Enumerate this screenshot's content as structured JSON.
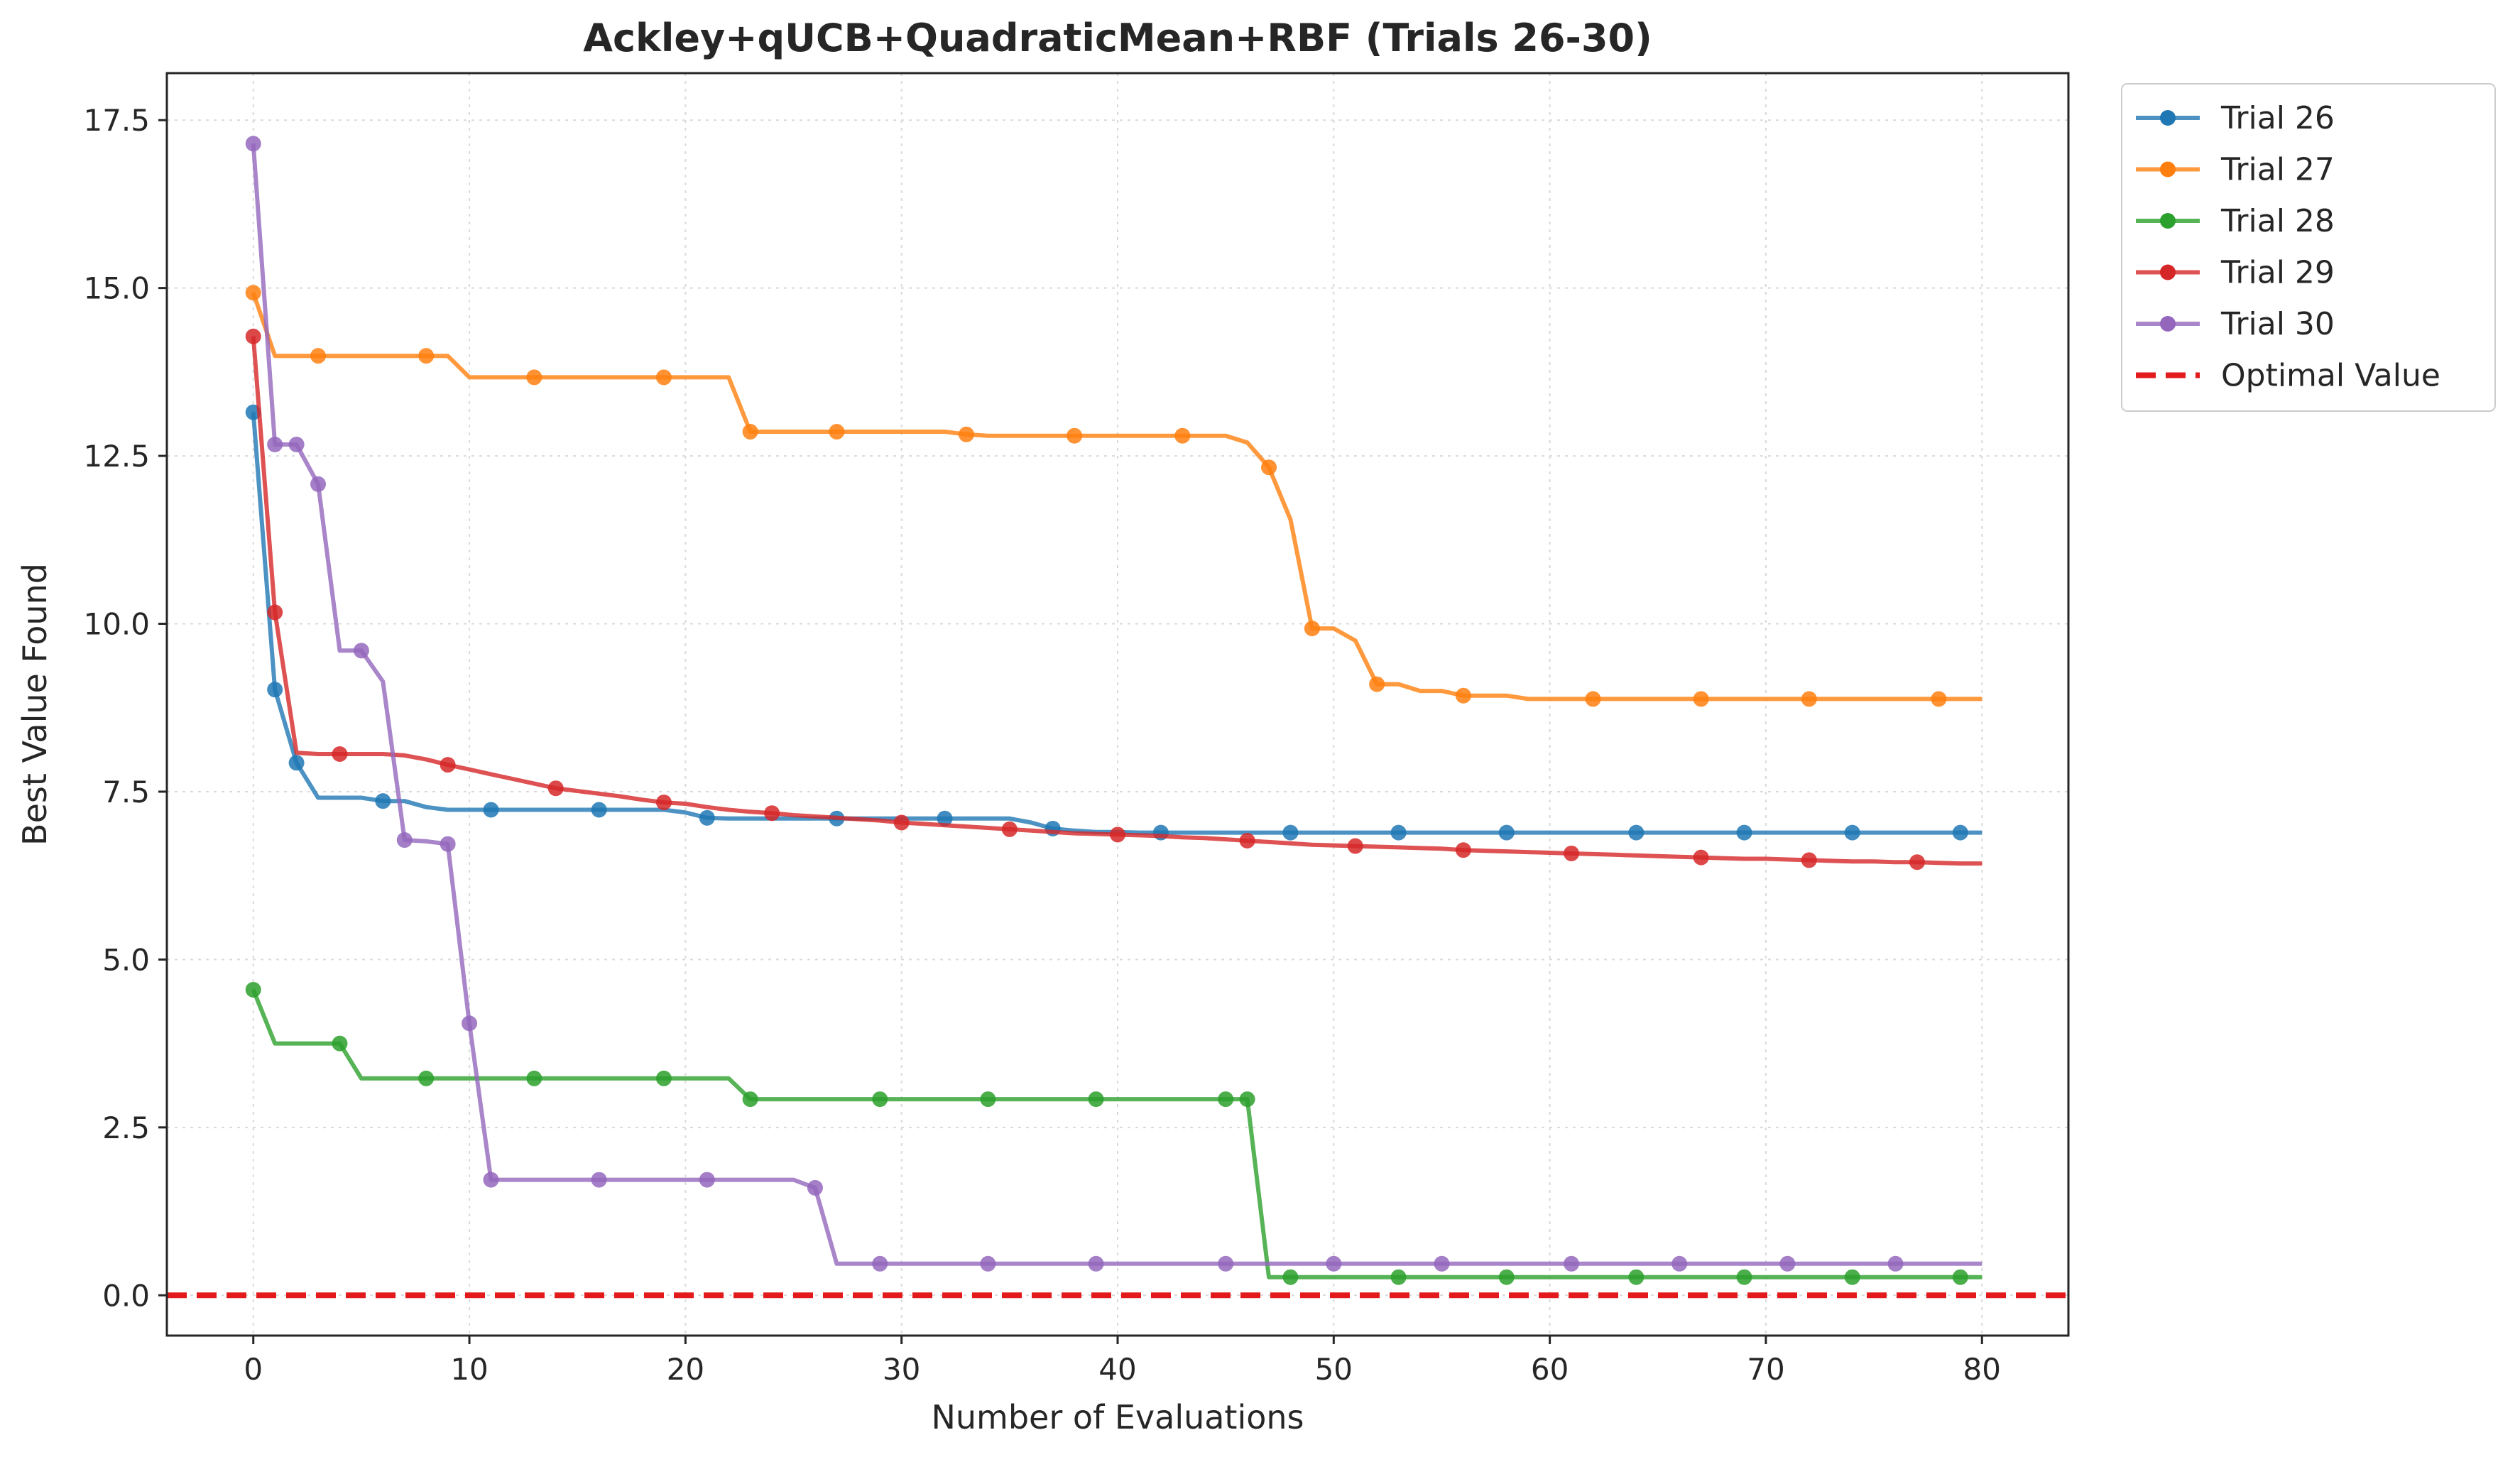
{
  "chart_data": {
    "type": "line",
    "title": "Ackley+qUCB+QuadraticMean+RBF (Trials 26-30)",
    "xlabel": "Number of Evaluations",
    "ylabel": "Best Value Found",
    "xlim": [
      -4,
      84
    ],
    "ylim": [
      -0.6,
      18.2
    ],
    "xticks": [
      0,
      10,
      20,
      30,
      40,
      50,
      60,
      70,
      80
    ],
    "yticks": [
      0.0,
      2.5,
      5.0,
      7.5,
      10.0,
      12.5,
      15.0,
      17.5
    ],
    "ytick_labels": [
      "0.0",
      "2.5",
      "5.0",
      "7.5",
      "10.0",
      "12.5",
      "15.0",
      "17.5"
    ],
    "grid": true,
    "legend_position": "outside-top-right",
    "series": [
      {
        "name": "Trial 26",
        "color": "#1f77b4",
        "x": [
          0,
          1,
          2,
          3,
          4,
          5,
          6,
          7,
          8,
          9,
          10,
          11,
          12,
          13,
          14,
          15,
          16,
          17,
          18,
          19,
          20,
          21,
          22,
          23,
          24,
          25,
          26,
          27,
          28,
          29,
          30,
          31,
          32,
          33,
          34,
          35,
          36,
          37,
          38,
          39,
          40,
          41,
          42,
          43,
          44,
          45,
          46,
          47,
          48,
          49,
          50,
          51,
          52,
          53,
          54,
          55,
          56,
          57,
          58,
          59,
          60,
          61,
          62,
          63,
          64,
          65,
          66,
          67,
          68,
          69,
          70,
          71,
          72,
          73,
          74,
          75,
          76,
          77,
          78,
          79,
          80
        ],
        "y": [
          13.15,
          9.02,
          7.93,
          7.41,
          7.41,
          7.41,
          7.36,
          7.36,
          7.27,
          7.23,
          7.23,
          7.23,
          7.23,
          7.23,
          7.23,
          7.23,
          7.23,
          7.23,
          7.23,
          7.23,
          7.19,
          7.11,
          7.1,
          7.1,
          7.1,
          7.1,
          7.1,
          7.1,
          7.1,
          7.1,
          7.1,
          7.1,
          7.1,
          7.1,
          7.1,
          7.1,
          7.04,
          6.95,
          6.92,
          6.9,
          6.9,
          6.89,
          6.89,
          6.89,
          6.89,
          6.89,
          6.89,
          6.89,
          6.89,
          6.89,
          6.89,
          6.89,
          6.89,
          6.89,
          6.89,
          6.89,
          6.89,
          6.89,
          6.89,
          6.89,
          6.89,
          6.89,
          6.89,
          6.89,
          6.89,
          6.89,
          6.89,
          6.89,
          6.89,
          6.89,
          6.89,
          6.89,
          6.89,
          6.89,
          6.89,
          6.89,
          6.89,
          6.89,
          6.89,
          6.89,
          6.89
        ],
        "markers_x": [
          0,
          1,
          2,
          6,
          11,
          16,
          21,
          27,
          32,
          37,
          42,
          48,
          53,
          58,
          64,
          69,
          74,
          79
        ]
      },
      {
        "name": "Trial 27",
        "color": "#ff7f0e",
        "x": [
          0,
          1,
          2,
          3,
          4,
          5,
          6,
          7,
          8,
          9,
          10,
          11,
          12,
          13,
          14,
          15,
          16,
          17,
          18,
          19,
          20,
          21,
          22,
          23,
          24,
          25,
          26,
          27,
          28,
          29,
          30,
          31,
          32,
          33,
          34,
          35,
          36,
          37,
          38,
          39,
          40,
          41,
          42,
          43,
          44,
          45,
          46,
          47,
          48,
          49,
          50,
          51,
          52,
          53,
          54,
          55,
          56,
          57,
          58,
          59,
          60,
          61,
          62,
          63,
          64,
          65,
          66,
          67,
          68,
          69,
          70,
          71,
          72,
          73,
          74,
          75,
          76,
          77,
          78,
          79,
          80
        ],
        "y": [
          14.93,
          13.99,
          13.99,
          13.99,
          13.99,
          13.99,
          13.99,
          13.99,
          13.99,
          13.99,
          13.67,
          13.67,
          13.67,
          13.67,
          13.67,
          13.67,
          13.67,
          13.67,
          13.67,
          13.67,
          13.67,
          13.67,
          13.67,
          12.86,
          12.86,
          12.86,
          12.86,
          12.86,
          12.86,
          12.86,
          12.86,
          12.86,
          12.86,
          12.82,
          12.8,
          12.8,
          12.8,
          12.8,
          12.8,
          12.8,
          12.8,
          12.8,
          12.8,
          12.8,
          12.8,
          12.8,
          12.7,
          12.33,
          11.55,
          9.93,
          9.93,
          9.75,
          9.1,
          9.1,
          9.0,
          9.0,
          8.93,
          8.93,
          8.93,
          8.88,
          8.88,
          8.88,
          8.88,
          8.88,
          8.88,
          8.88,
          8.88,
          8.88,
          8.88,
          8.88,
          8.88,
          8.88,
          8.88,
          8.88,
          8.88,
          8.88,
          8.88,
          8.88,
          8.88,
          8.88,
          8.88
        ],
        "markers_x": [
          0,
          3,
          8,
          13,
          19,
          23,
          27,
          33,
          38,
          43,
          47,
          49,
          52,
          56,
          62,
          67,
          72,
          78
        ]
      },
      {
        "name": "Trial 28",
        "color": "#2ca02c",
        "x": [
          0,
          1,
          2,
          3,
          4,
          5,
          6,
          7,
          8,
          9,
          10,
          11,
          12,
          13,
          14,
          15,
          16,
          17,
          18,
          19,
          20,
          21,
          22,
          23,
          24,
          25,
          26,
          27,
          28,
          29,
          30,
          31,
          32,
          33,
          34,
          35,
          36,
          37,
          38,
          39,
          40,
          41,
          42,
          43,
          44,
          45,
          46,
          47,
          48,
          49,
          50,
          51,
          52,
          53,
          54,
          55,
          56,
          57,
          58,
          59,
          60,
          61,
          62,
          63,
          64,
          65,
          66,
          67,
          68,
          69,
          70,
          71,
          72,
          73,
          74,
          75,
          76,
          77,
          78,
          79,
          80
        ],
        "y": [
          4.55,
          3.75,
          3.75,
          3.75,
          3.75,
          3.23,
          3.23,
          3.23,
          3.23,
          3.23,
          3.23,
          3.23,
          3.23,
          3.23,
          3.23,
          3.23,
          3.23,
          3.23,
          3.23,
          3.23,
          3.23,
          3.23,
          3.23,
          2.92,
          2.92,
          2.92,
          2.92,
          2.92,
          2.92,
          2.92,
          2.92,
          2.92,
          2.92,
          2.92,
          2.92,
          2.92,
          2.92,
          2.92,
          2.92,
          2.92,
          2.92,
          2.92,
          2.92,
          2.92,
          2.92,
          2.92,
          2.92,
          0.27,
          0.27,
          0.27,
          0.27,
          0.27,
          0.27,
          0.27,
          0.27,
          0.27,
          0.27,
          0.27,
          0.27,
          0.27,
          0.27,
          0.27,
          0.27,
          0.27,
          0.27,
          0.27,
          0.27,
          0.27,
          0.27,
          0.27,
          0.27,
          0.27,
          0.27,
          0.27,
          0.27,
          0.27,
          0.27,
          0.27,
          0.27,
          0.27,
          0.27
        ],
        "markers_x": [
          0,
          4,
          8,
          13,
          19,
          23,
          29,
          34,
          39,
          45,
          46,
          48,
          53,
          58,
          64,
          69,
          74,
          79
        ]
      },
      {
        "name": "Trial 29",
        "color": "#d62728",
        "x": [
          0,
          1,
          2,
          3,
          4,
          5,
          6,
          7,
          8,
          9,
          10,
          11,
          12,
          13,
          14,
          15,
          16,
          17,
          18,
          19,
          20,
          21,
          22,
          23,
          24,
          25,
          26,
          27,
          28,
          29,
          30,
          31,
          32,
          33,
          34,
          35,
          36,
          37,
          38,
          39,
          40,
          41,
          42,
          43,
          44,
          45,
          46,
          47,
          48,
          49,
          50,
          51,
          52,
          53,
          54,
          55,
          56,
          57,
          58,
          59,
          60,
          61,
          62,
          63,
          64,
          65,
          66,
          67,
          68,
          69,
          70,
          71,
          72,
          73,
          74,
          75,
          76,
          77,
          78,
          79,
          80
        ],
        "y": [
          14.28,
          10.17,
          8.08,
          8.06,
          8.06,
          8.06,
          8.06,
          8.04,
          7.98,
          7.9,
          7.83,
          7.76,
          7.69,
          7.62,
          7.55,
          7.51,
          7.47,
          7.43,
          7.38,
          7.34,
          7.32,
          7.27,
          7.23,
          7.2,
          7.18,
          7.15,
          7.13,
          7.11,
          7.09,
          7.07,
          7.04,
          7.02,
          7.0,
          6.98,
          6.96,
          6.94,
          6.92,
          6.9,
          6.88,
          6.87,
          6.86,
          6.85,
          6.84,
          6.82,
          6.81,
          6.79,
          6.77,
          6.75,
          6.73,
          6.71,
          6.7,
          6.69,
          6.68,
          6.67,
          6.66,
          6.65,
          6.63,
          6.62,
          6.61,
          6.6,
          6.59,
          6.58,
          6.57,
          6.56,
          6.55,
          6.54,
          6.53,
          6.52,
          6.51,
          6.5,
          6.5,
          6.49,
          6.48,
          6.47,
          6.46,
          6.46,
          6.45,
          6.45,
          6.44,
          6.43,
          6.43
        ],
        "markers_x": [
          0,
          1,
          4,
          9,
          14,
          19,
          24,
          30,
          35,
          40,
          46,
          51,
          56,
          61,
          67,
          72,
          77
        ]
      },
      {
        "name": "Trial 30",
        "color": "#9467bd",
        "x": [
          0,
          1,
          2,
          3,
          4,
          5,
          6,
          7,
          8,
          9,
          10,
          11,
          12,
          13,
          14,
          15,
          16,
          17,
          18,
          19,
          20,
          21,
          22,
          23,
          24,
          25,
          26,
          27,
          28,
          29,
          30,
          31,
          32,
          33,
          34,
          35,
          36,
          37,
          38,
          39,
          40,
          41,
          42,
          43,
          44,
          45,
          46,
          47,
          48,
          49,
          50,
          51,
          52,
          53,
          54,
          55,
          56,
          57,
          58,
          59,
          60,
          61,
          62,
          63,
          64,
          65,
          66,
          67,
          68,
          69,
          70,
          71,
          72,
          73,
          74,
          75,
          76,
          77,
          78,
          79,
          80
        ],
        "y": [
          17.15,
          12.67,
          12.67,
          12.08,
          9.6,
          9.6,
          9.14,
          6.78,
          6.76,
          6.72,
          4.05,
          1.72,
          1.72,
          1.72,
          1.72,
          1.72,
          1.72,
          1.72,
          1.72,
          1.72,
          1.72,
          1.72,
          1.72,
          1.72,
          1.72,
          1.72,
          1.6,
          0.47,
          0.47,
          0.47,
          0.47,
          0.47,
          0.47,
          0.47,
          0.47,
          0.47,
          0.47,
          0.47,
          0.47,
          0.47,
          0.47,
          0.47,
          0.47,
          0.47,
          0.47,
          0.47,
          0.47,
          0.47,
          0.47,
          0.47,
          0.47,
          0.47,
          0.47,
          0.47,
          0.47,
          0.47,
          0.47,
          0.47,
          0.47,
          0.47,
          0.47,
          0.47,
          0.47,
          0.47,
          0.47,
          0.47,
          0.47,
          0.47,
          0.47,
          0.47,
          0.47,
          0.47,
          0.47,
          0.47,
          0.47,
          0.47,
          0.47,
          0.47,
          0.47,
          0.47,
          0.47
        ],
        "markers_x": [
          0,
          1,
          2,
          3,
          5,
          7,
          9,
          10,
          11,
          16,
          21,
          26,
          29,
          34,
          39,
          45,
          50,
          55,
          61,
          66,
          71,
          76
        ]
      }
    ],
    "reference_line": {
      "name": "Optimal Value",
      "y": 0.0,
      "color": "#e31a1c",
      "style": "dashed"
    }
  }
}
